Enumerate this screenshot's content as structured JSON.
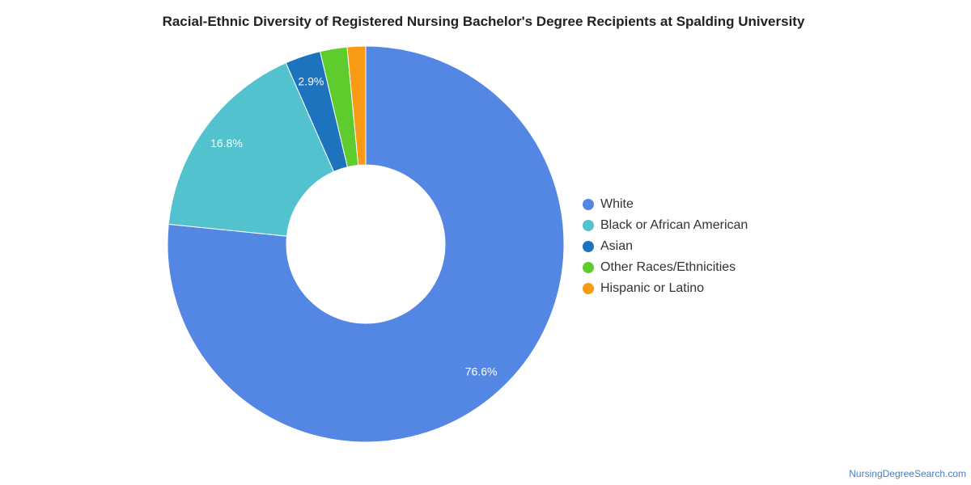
{
  "chart_data": {
    "type": "pie",
    "title": "Racial-Ethnic Diversity of Registered Nursing Bachelor's Degree Recipients at Spalding University",
    "donut": true,
    "legend_position": "right",
    "unit": "%",
    "slices": [
      {
        "name": "White",
        "value": 76.6,
        "label": "76.6%",
        "color": "#5486e3"
      },
      {
        "name": "Black or African American",
        "value": 16.8,
        "label": "16.8%",
        "color": "#52c2cf"
      },
      {
        "name": "Asian",
        "value": 2.9,
        "label": "2.9%",
        "color": "#1e73be"
      },
      {
        "name": "Other Races/Ethnicities",
        "value": 2.2,
        "label": "",
        "color": "#5fcc2d"
      },
      {
        "name": "Hispanic or Latino",
        "value": 1.5,
        "label": "",
        "color": "#f89a13"
      }
    ]
  },
  "watermark": "NursingDegreeSearch.com"
}
